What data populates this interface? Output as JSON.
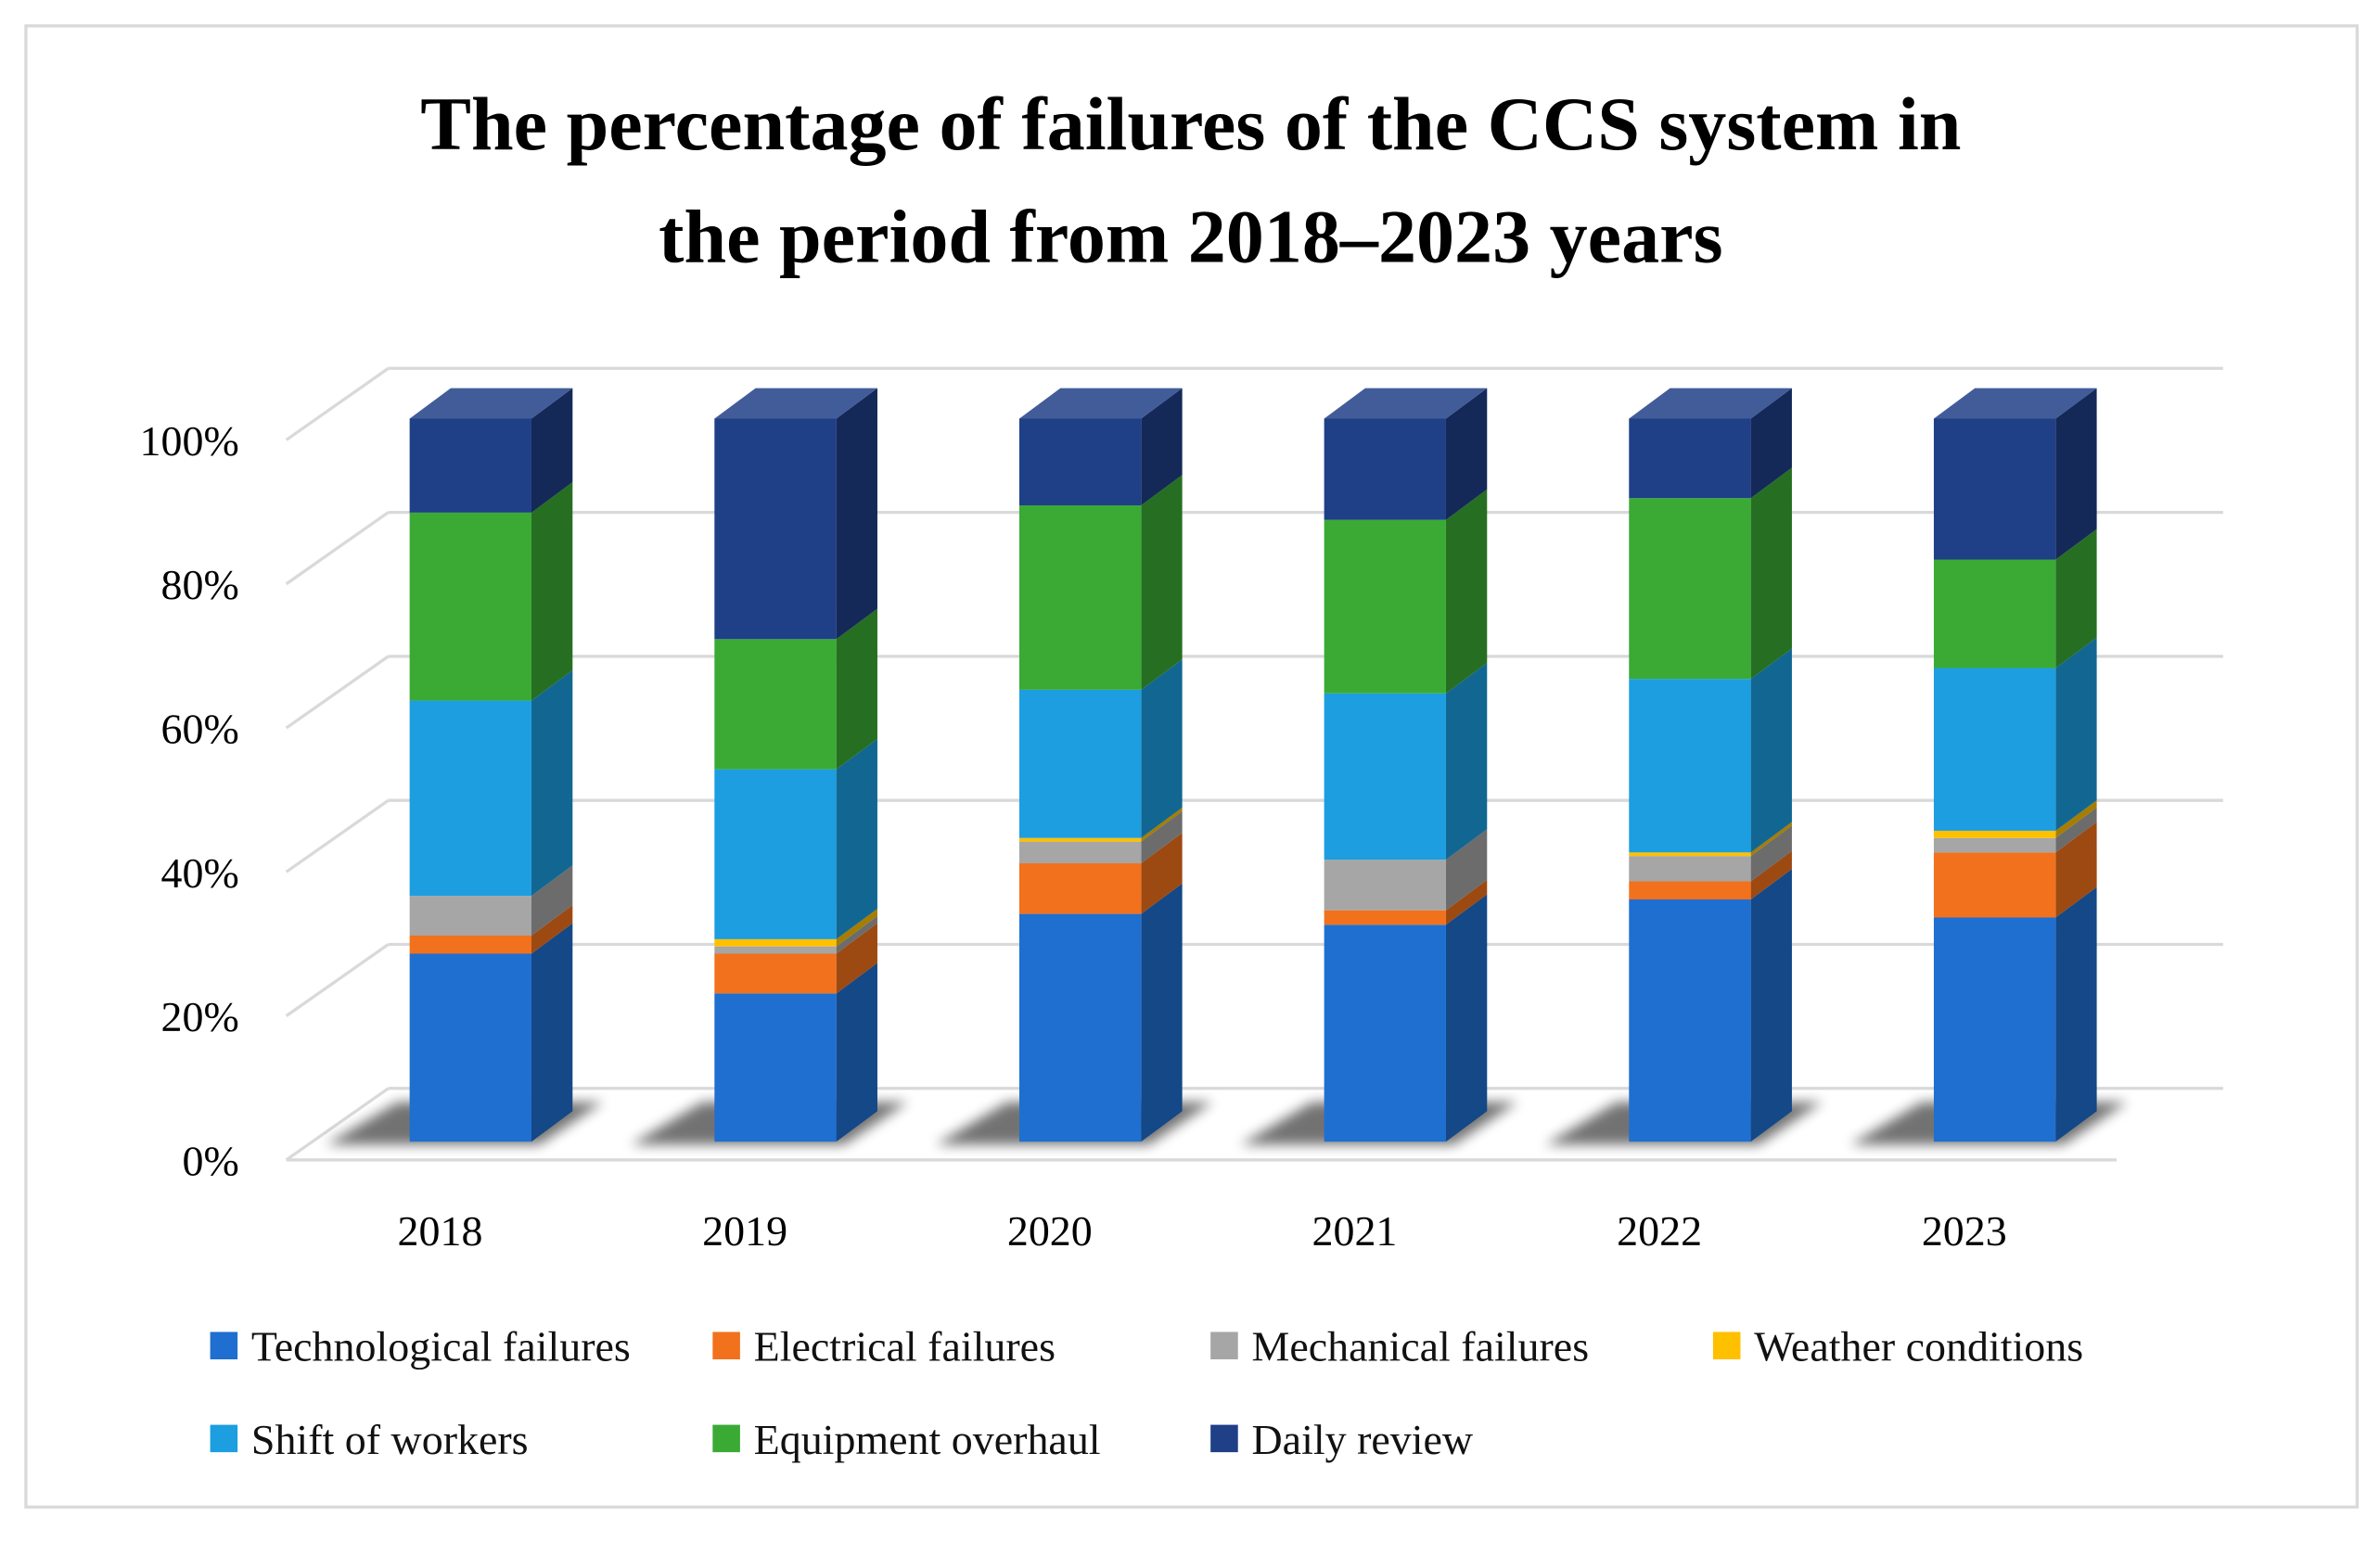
{
  "chart_data": {
    "type": "bar",
    "stacked": true,
    "three_d": true,
    "percent_stacked": true,
    "title_lines": [
      "The percentage of failures of the CCS system in",
      "the period  from 2018–2023  years"
    ],
    "categories": [
      "2018",
      "2019",
      "2020",
      "2021",
      "2022",
      "2023"
    ],
    "yticks": [
      "0%",
      "20%",
      "40%",
      "60%",
      "80%",
      "100%"
    ],
    "ylim": [
      0,
      100
    ],
    "grid": true,
    "legend_position": "bottom",
    "series": [
      {
        "name": "Technological failures",
        "color": "#1f6fd0",
        "values": [
          26,
          20.5,
          31.5,
          30,
          33.5,
          31
        ]
      },
      {
        "name": "Electrical failures",
        "color": "#f2711c",
        "values": [
          2.5,
          5.5,
          7,
          2,
          2.5,
          9
        ]
      },
      {
        "name": "Mechanical failures",
        "color": "#a6a6a6",
        "values": [
          5.5,
          1,
          3,
          7,
          3.5,
          2
        ]
      },
      {
        "name": "Weather conditions",
        "color": "#ffc000",
        "values": [
          0,
          1,
          0.5,
          0,
          0.5,
          1
        ]
      },
      {
        "name": "Shift of workers",
        "color": "#1c9ee0",
        "values": [
          27,
          23.5,
          20.5,
          23,
          24,
          22.5
        ]
      },
      {
        "name": "Equipment overhaul",
        "color": "#3aaa35",
        "values": [
          26,
          18,
          25.5,
          24,
          25,
          15
        ]
      },
      {
        "name": "Daily review",
        "color": "#1f3f87",
        "values": [
          13,
          30.5,
          12,
          14,
          11,
          19.5
        ]
      }
    ]
  }
}
